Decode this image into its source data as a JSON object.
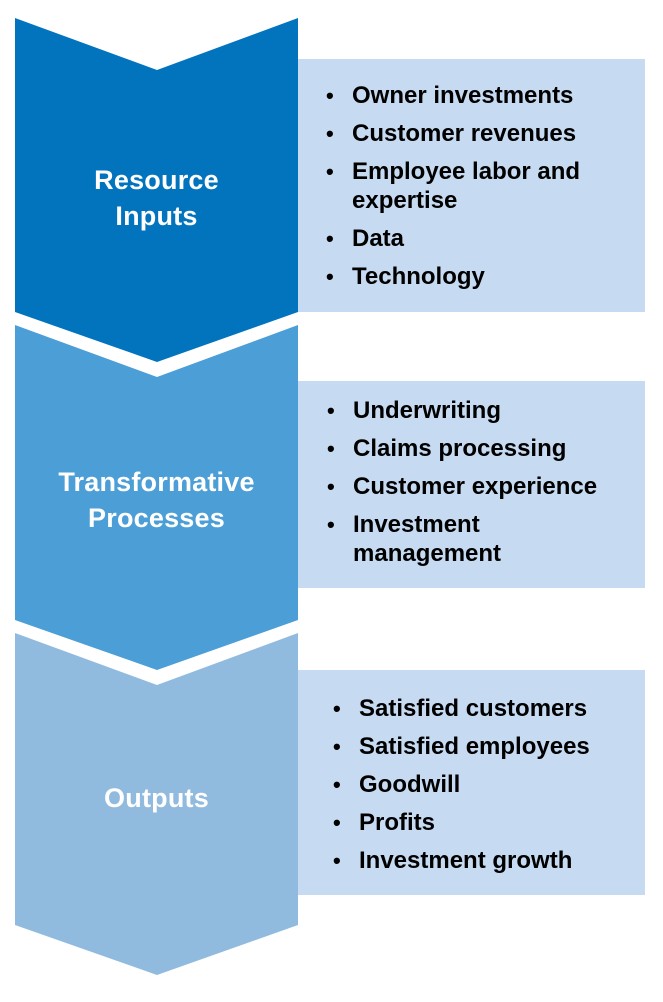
{
  "colors": {
    "stage1": "#0274be",
    "stage2": "#4c9ed6",
    "stage3": "#91badf",
    "panel": "#c6dbf1"
  },
  "stages": [
    {
      "label_lines": [
        "Resource",
        "Inputs"
      ],
      "items": [
        [
          "Owner investments"
        ],
        [
          "Customer revenues"
        ],
        [
          "Employee labor and",
          "expertise"
        ],
        [
          "Data"
        ],
        [
          "Technology"
        ]
      ]
    },
    {
      "label_lines": [
        "Transformative",
        "Processes"
      ],
      "items": [
        [
          "Underwriting"
        ],
        [
          "Claims processing"
        ],
        [
          "Customer experience"
        ],
        [
          "Investment",
          "management"
        ]
      ]
    },
    {
      "label_lines": [
        "Outputs"
      ],
      "items": [
        [
          "Satisfied customers"
        ],
        [
          "Satisfied employees"
        ],
        [
          "Goodwill"
        ],
        [
          "Profits"
        ],
        [
          "Investment growth"
        ]
      ]
    }
  ]
}
